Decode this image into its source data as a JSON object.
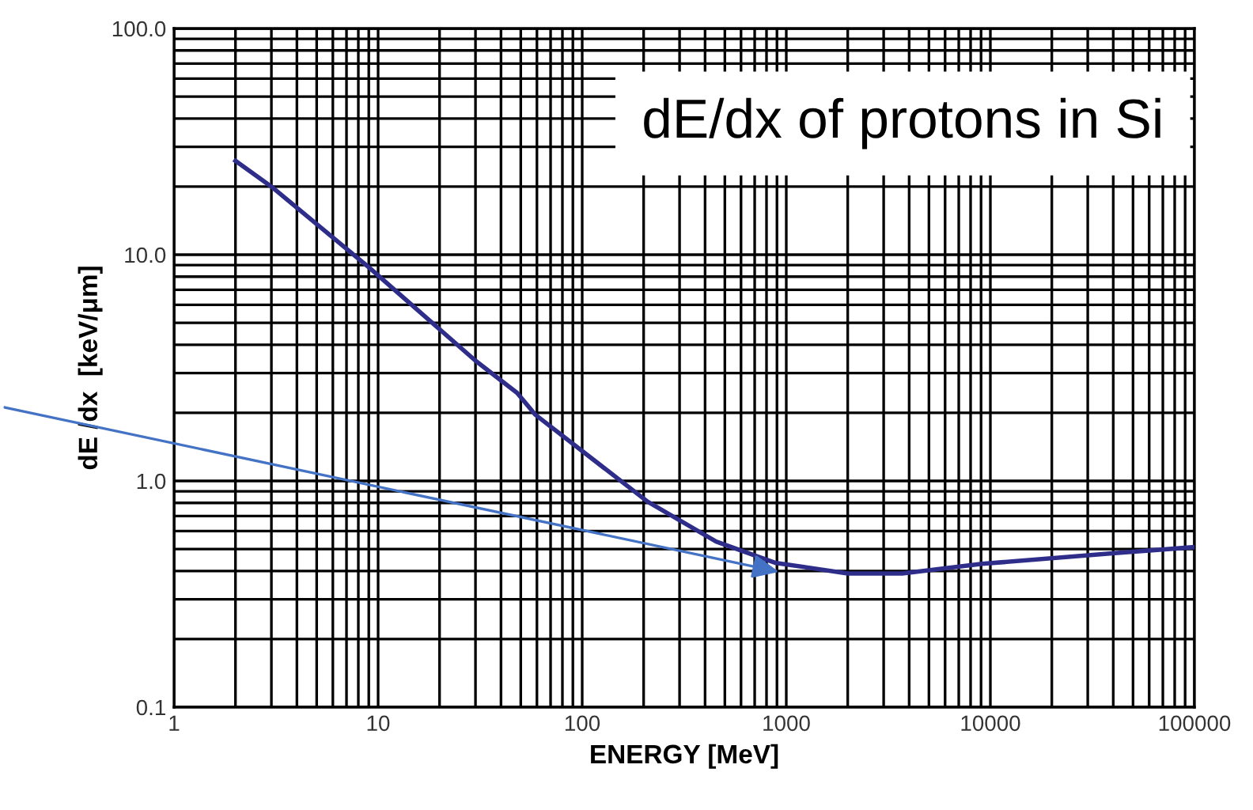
{
  "chart_data": {
    "type": "line",
    "xlabel": "ENERGY [MeV]",
    "ylabel": "dE /dx  [keV/μm]",
    "annotations": [
      "dE/dx of protons in Si"
    ],
    "log": "xy",
    "grid": true,
    "marker": "none",
    "line_style": "solid",
    "xlim": [
      1,
      100000
    ],
    "xticks": [
      1,
      10,
      100,
      1000,
      10000,
      100000
    ],
    "ylim": [
      0.1,
      100
    ],
    "yticks": [
      {
        "value": 0.1,
        "label": "0.1"
      },
      {
        "value": 1,
        "label": "1.0"
      },
      {
        "value": 10,
        "label": "10.0"
      },
      {
        "value": 100,
        "label": "100.0"
      }
    ],
    "series": [
      {
        "color": "#2e2e8a",
        "x": [
          2,
          3,
          9,
          30,
          48,
          59,
          209,
          453,
          880,
          2000,
          3700,
          9100,
          40700,
          100000
        ],
        "values": [
          26,
          20,
          8.8,
          3.4,
          2.45,
          1.96,
          0.81,
          0.54,
          0.435,
          0.39,
          0.39,
          0.43,
          0.48,
          0.51
        ]
      }
    ]
  }
}
